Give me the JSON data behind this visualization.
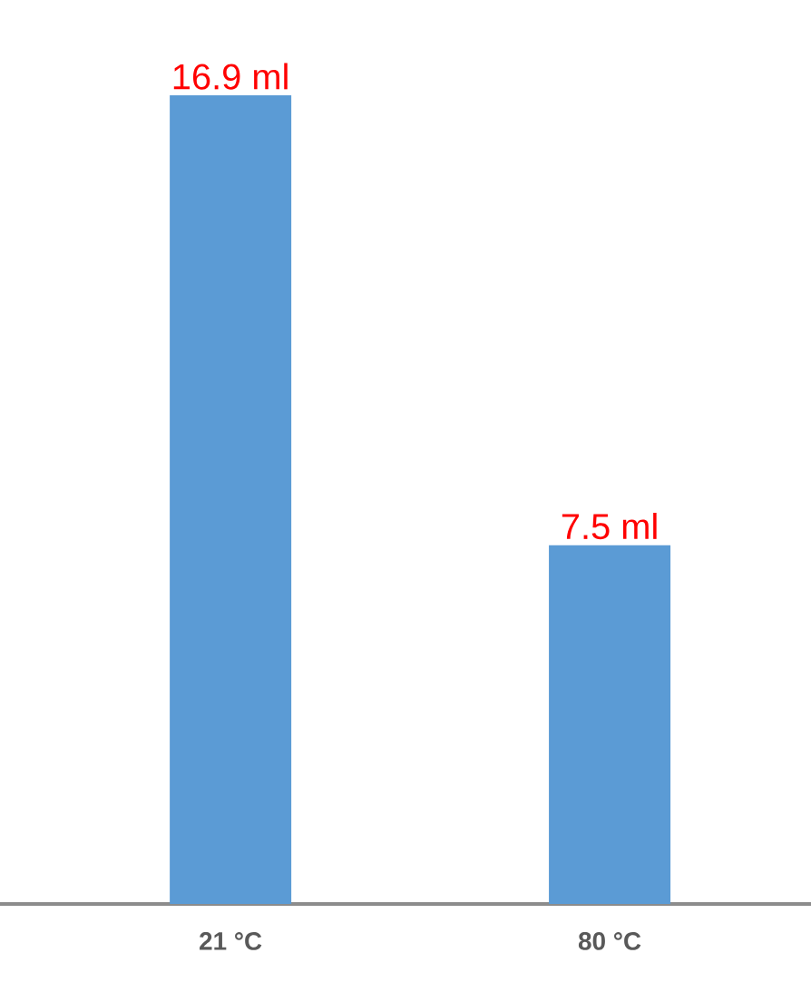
{
  "chart_data": {
    "type": "bar",
    "categories": [
      "21 °C",
      "80 °C"
    ],
    "values": [
      16.9,
      7.5
    ],
    "color": "#5b9bd5",
    "value_labels": [
      "16.9 ml",
      "7.5 ml"
    ]
  }
}
